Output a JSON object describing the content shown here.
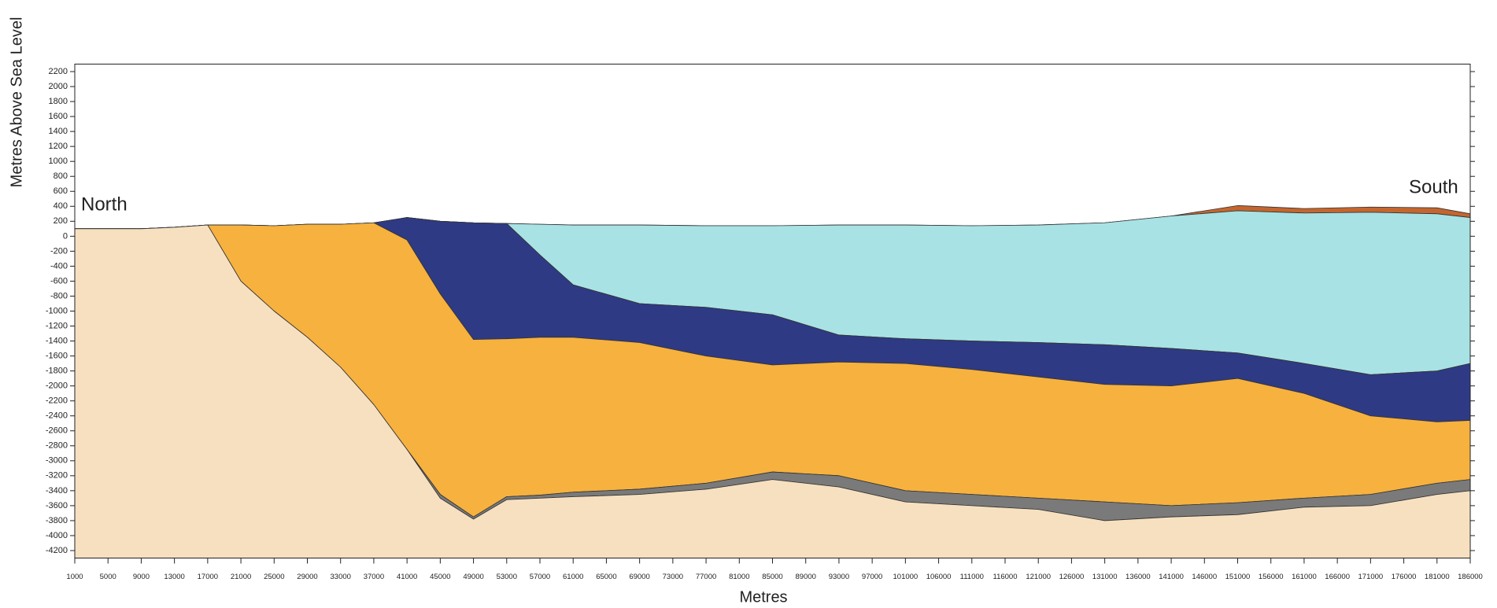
{
  "chart_data": {
    "type": "section",
    "ylabel": "Metres Above Sea Level",
    "xlabel": "Metres",
    "annotations": [
      "North",
      "South"
    ],
    "xlim": [
      1000,
      186000
    ],
    "ylim": [
      -4300,
      2300
    ],
    "xticks": [
      1000,
      5000,
      9000,
      13000,
      17000,
      21000,
      25000,
      29000,
      33000,
      37000,
      41000,
      45000,
      49000,
      53000,
      57000,
      61000,
      65000,
      69000,
      73000,
      77000,
      81000,
      85000,
      89000,
      93000,
      97000,
      101000,
      106000,
      111000,
      116000,
      121000,
      126000,
      131000,
      136000,
      141000,
      146000,
      151000,
      156000,
      161000,
      166000,
      171000,
      176000,
      181000,
      186000
    ],
    "yticks": [
      2200,
      2000,
      1800,
      1600,
      1400,
      1200,
      1000,
      800,
      600,
      400,
      200,
      0,
      -200,
      -400,
      -600,
      -800,
      -1000,
      -1200,
      -1400,
      -1600,
      -1800,
      -2000,
      -2200,
      -2400,
      -2600,
      -2800,
      -3000,
      -3200,
      -3400,
      -3600,
      -3800,
      -4000,
      -4200
    ],
    "x": [
      1000,
      9000,
      13000,
      17000,
      21000,
      25000,
      29000,
      33000,
      37000,
      41000,
      45000,
      49000,
      53000,
      57000,
      61000,
      69000,
      77000,
      85000,
      93000,
      101000,
      111000,
      121000,
      131000,
      141000,
      151000,
      161000,
      171000,
      181000,
      186000
    ],
    "series": [
      {
        "color": "#c4662f",
        "values": [
          100,
          100,
          120,
          150,
          150,
          140,
          160,
          160,
          180,
          250,
          200,
          180,
          170,
          160,
          150,
          150,
          140,
          140,
          150,
          150,
          140,
          150,
          180,
          270,
          410,
          370,
          390,
          380,
          300
        ]
      },
      {
        "color": "#a8e2e4",
        "values": [
          100,
          100,
          120,
          150,
          150,
          140,
          160,
          160,
          180,
          250,
          200,
          180,
          170,
          160,
          150,
          150,
          140,
          140,
          150,
          150,
          140,
          150,
          180,
          270,
          340,
          310,
          320,
          300,
          250
        ]
      },
      {
        "color": "#2f3a84",
        "values": [
          100,
          100,
          120,
          150,
          150,
          140,
          160,
          160,
          180,
          250,
          200,
          180,
          170,
          -250,
          -650,
          -900,
          -950,
          -1050,
          -1320,
          -1370,
          -1400,
          -1420,
          -1450,
          -1500,
          -1560,
          -1700,
          -1850,
          -1800,
          -1700
        ]
      },
      {
        "color": "#f6b13f",
        "values": [
          100,
          100,
          120,
          150,
          150,
          140,
          160,
          160,
          180,
          -50,
          -770,
          -1380,
          -1370,
          -1350,
          -1350,
          -1420,
          -1600,
          -1720,
          -1680,
          -1700,
          -1780,
          -1880,
          -1980,
          -2000,
          -1900,
          -2100,
          -2400,
          -2480,
          -2460
        ]
      },
      {
        "color": "#7a7a7a",
        "values": [
          100,
          100,
          120,
          150,
          -600,
          -1000,
          -1350,
          -1750,
          -2250,
          -2850,
          -3450,
          -3750,
          -3480,
          -3460,
          -3420,
          -3380,
          -3300,
          -3150,
          -3200,
          -3400,
          -3450,
          -3500,
          -3550,
          -3600,
          -3560,
          -3500,
          -3450,
          -3300,
          -3250
        ]
      },
      {
        "color": "#f6e0c0",
        "values": [
          100,
          100,
          120,
          150,
          -600,
          -1000,
          -1350,
          -1750,
          -2250,
          -2850,
          -3500,
          -3780,
          -3520,
          -3500,
          -3480,
          -3450,
          -3380,
          -3250,
          -3350,
          -3550,
          -3600,
          -3650,
          -3800,
          -3750,
          -3720,
          -3620,
          -3600,
          -3450,
          -3400
        ]
      }
    ]
  }
}
